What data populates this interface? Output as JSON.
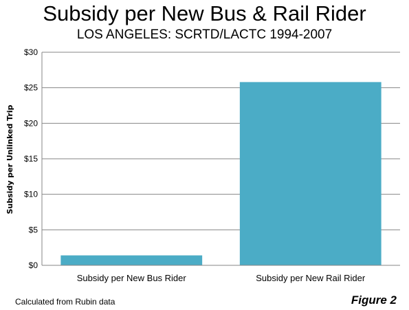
{
  "chart_data": {
    "type": "bar",
    "title": "Subsidy per New Bus & Rail Rider",
    "subtitle": "LOS ANGELES: SCRTD/LACTC 1994-2007",
    "categories": [
      "Subsidy per New Bus Rider",
      "Subsidy per New Rail Rider"
    ],
    "values": [
      1.4,
      25.8
    ],
    "ylabel": "Subsidy per Unlinked Trip",
    "xlabel": "",
    "ylim": [
      0,
      30
    ],
    "yticks": [
      0,
      5,
      10,
      15,
      20,
      25,
      30
    ],
    "ytick_labels": [
      "$0",
      "$5",
      "$10",
      "$15",
      "$20",
      "$25",
      "$30"
    ],
    "bar_color": "#4BACC6",
    "grid": true,
    "legend": "none"
  },
  "footer": {
    "source": "Calculated from Rubin data",
    "figure": "Figure 2"
  }
}
